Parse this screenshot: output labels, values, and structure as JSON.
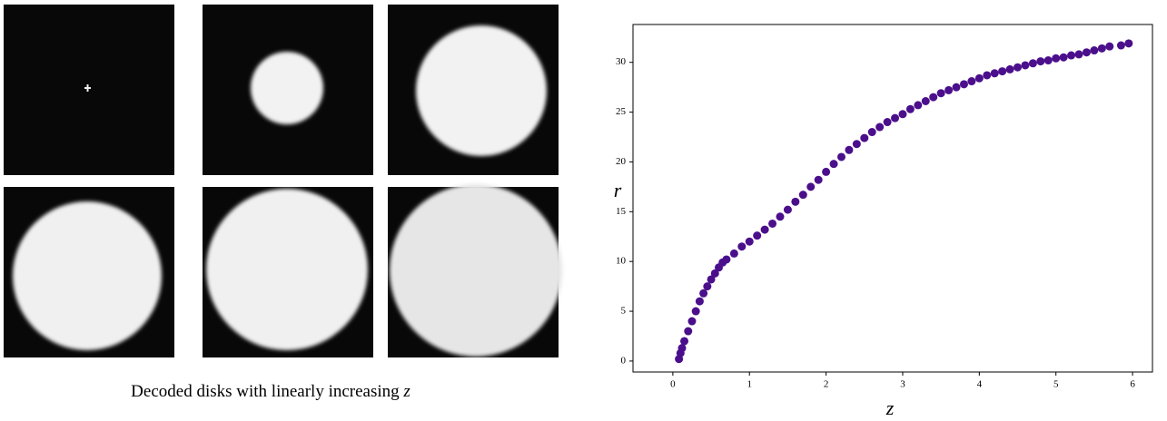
{
  "caption": {
    "text": "Decoded disks with linearly increasing",
    "variable": "z"
  },
  "chart_data": {
    "type": "scatter",
    "x_label": "z",
    "y_label": "r",
    "xlim": [
      -0.52,
      6.26
    ],
    "ylim": [
      -1.1,
      33.8
    ],
    "xticks": [
      0,
      1,
      2,
      3,
      4,
      5,
      6
    ],
    "yticks": [
      0,
      5,
      10,
      15,
      20,
      25,
      30
    ],
    "grid": false,
    "series": [
      {
        "color": "#4b0f8c",
        "x": [
          0.08,
          0.1,
          0.12,
          0.15,
          0.2,
          0.25,
          0.3,
          0.35,
          0.4,
          0.45,
          0.5,
          0.55,
          0.6,
          0.65,
          0.7,
          0.8,
          0.9,
          1.0,
          1.1,
          1.2,
          1.3,
          1.4,
          1.5,
          1.6,
          1.7,
          1.8,
          1.9,
          2.0,
          2.1,
          2.2,
          2.3,
          2.4,
          2.5,
          2.6,
          2.7,
          2.8,
          2.9,
          3.0,
          3.1,
          3.2,
          3.3,
          3.4,
          3.5,
          3.6,
          3.7,
          3.8,
          3.9,
          4.0,
          4.1,
          4.2,
          4.3,
          4.4,
          4.5,
          4.6,
          4.7,
          4.8,
          4.9,
          5.0,
          5.1,
          5.2,
          5.3,
          5.4,
          5.5,
          5.6,
          5.7,
          5.85,
          5.95
        ],
        "values": [
          0.2,
          0.8,
          1.3,
          2,
          3,
          4,
          5,
          6,
          6.8,
          7.5,
          8.2,
          8.8,
          9.4,
          9.9,
          10.2,
          10.8,
          11.5,
          12,
          12.6,
          13.2,
          13.8,
          14.5,
          15.2,
          16,
          16.7,
          17.5,
          18.2,
          19,
          19.8,
          20.5,
          21.2,
          21.8,
          22.4,
          23,
          23.5,
          24,
          24.4,
          24.8,
          25.3,
          25.7,
          26.1,
          26.5,
          26.9,
          27.2,
          27.5,
          27.8,
          28.1,
          28.4,
          28.7,
          28.9,
          29.1,
          29.3,
          29.5,
          29.7,
          29.9,
          30.1,
          30.2,
          30.4,
          30.5,
          30.7,
          30.8,
          31,
          31.2,
          31.4,
          31.6,
          31.7,
          31.9
        ]
      }
    ]
  }
}
